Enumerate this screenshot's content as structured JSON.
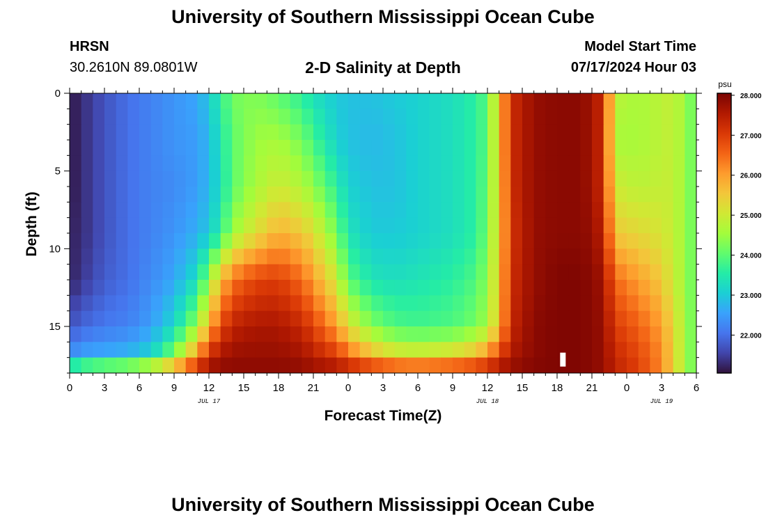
{
  "page": {
    "title": "University of Southern Mississippi Ocean Cube",
    "footer_title": "University of Southern Mississippi Ocean Cube",
    "station": "HRSN",
    "coordinates": "30.2610N  89.0801W",
    "subtitle": "2-D Salinity at Depth",
    "model_label": "Model Start Time",
    "model_time": "07/17/2024 Hour 03"
  },
  "chart_data": {
    "type": "heatmap",
    "title": "2-D Salinity at Depth",
    "xlabel": "Forecast Time(Z)",
    "ylabel": "Depth (ft)",
    "x_range_hours": [
      0,
      54
    ],
    "y_range_ft": [
      0,
      18
    ],
    "x_ticks": [
      {
        "hour": 0,
        "label": "0"
      },
      {
        "hour": 3,
        "label": "3"
      },
      {
        "hour": 6,
        "label": "6"
      },
      {
        "hour": 9,
        "label": "9"
      },
      {
        "hour": 12,
        "label": "12"
      },
      {
        "hour": 15,
        "label": "15"
      },
      {
        "hour": 18,
        "label": "18"
      },
      {
        "hour": 21,
        "label": "21"
      },
      {
        "hour": 24,
        "label": "0"
      },
      {
        "hour": 27,
        "label": "3"
      },
      {
        "hour": 30,
        "label": "6"
      },
      {
        "hour": 33,
        "label": "9"
      },
      {
        "hour": 36,
        "label": "12"
      },
      {
        "hour": 39,
        "label": "15"
      },
      {
        "hour": 42,
        "label": "18"
      },
      {
        "hour": 45,
        "label": "21"
      },
      {
        "hour": 48,
        "label": "0"
      },
      {
        "hour": 51,
        "label": "3"
      },
      {
        "hour": 54,
        "label": "6"
      }
    ],
    "date_labels": [
      {
        "hour": 12,
        "label": "JUL 17"
      },
      {
        "hour": 36,
        "label": "JUL 18"
      },
      {
        "hour": 51,
        "label": "JUL 19"
      }
    ],
    "y_ticks": [
      {
        "depth": 0,
        "label": "0"
      },
      {
        "depth": 5,
        "label": "5"
      },
      {
        "depth": 10,
        "label": "10"
      },
      {
        "depth": 15,
        "label": "15"
      }
    ],
    "colorbar": {
      "unit": "psu",
      "min": 21.05,
      "max": 28.05,
      "ticks": [
        {
          "value": 28,
          "label": "28.000"
        },
        {
          "value": 27,
          "label": "27.000"
        },
        {
          "value": 26,
          "label": "26.000"
        },
        {
          "value": 25,
          "label": "25.000"
        },
        {
          "value": 24,
          "label": "24.000"
        },
        {
          "value": 23,
          "label": "23.000"
        },
        {
          "value": 22,
          "label": "22.000"
        }
      ],
      "colors": [
        "#30123b",
        "#4145ab",
        "#4675ed",
        "#39a2fc",
        "#1bcfd4",
        "#24eca6",
        "#61fc6c",
        "#a4fc3b",
        "#d1e834",
        "#f3c63a",
        "#fe9b2d",
        "#f36315",
        "#d93806",
        "#b11901",
        "#7a0402"
      ]
    },
    "depth_rows_ft": [
      0,
      3,
      6,
      9,
      12,
      15,
      17,
      18
    ],
    "time_hours": [
      0,
      1,
      3,
      5,
      7,
      9,
      11,
      12,
      13,
      14,
      16,
      18,
      20,
      21,
      23,
      24,
      26,
      28,
      30,
      33,
      35,
      36,
      37,
      38,
      40,
      42,
      43,
      44,
      45,
      46,
      47,
      49,
      51,
      52,
      53,
      54
    ],
    "salinity_psu": [
      [
        21.1,
        21.3,
        21.7,
        22.0,
        22.2,
        22.4,
        22.6,
        23.0,
        23.6,
        24.2,
        24.3,
        24.0,
        23.6,
        23.3,
        23.0,
        22.9,
        22.9,
        23.0,
        23.1,
        23.3,
        23.6,
        24.0,
        25.5,
        27.2,
        27.8,
        27.9,
        27.9,
        27.9,
        27.7,
        27.2,
        24.8,
        24.6,
        24.8,
        24.9,
        24.5,
        24.0
      ],
      [
        21.1,
        21.3,
        21.7,
        22.0,
        22.2,
        22.4,
        22.5,
        22.8,
        23.4,
        24.0,
        24.5,
        24.6,
        24.2,
        23.8,
        23.1,
        22.9,
        22.8,
        22.9,
        23.1,
        23.3,
        23.6,
        24.0,
        25.5,
        27.2,
        27.8,
        27.9,
        27.9,
        27.9,
        27.7,
        27.2,
        24.6,
        24.6,
        24.8,
        24.9,
        24.5,
        24.0
      ],
      [
        21.1,
        21.3,
        21.7,
        22.0,
        22.2,
        22.3,
        22.5,
        22.8,
        23.3,
        24.0,
        24.6,
        25.0,
        24.7,
        24.4,
        23.6,
        23.1,
        22.9,
        22.9,
        23.1,
        23.3,
        23.6,
        24.1,
        25.4,
        27.2,
        27.8,
        27.9,
        27.9,
        27.9,
        27.7,
        27.2,
        25.0,
        24.8,
        24.9,
        24.9,
        24.5,
        24.0
      ],
      [
        21.2,
        21.3,
        21.7,
        22.0,
        22.2,
        22.4,
        22.7,
        23.0,
        23.6,
        24.5,
        25.2,
        25.8,
        25.5,
        25.2,
        24.2,
        23.4,
        23.0,
        23.0,
        23.1,
        23.3,
        23.6,
        24.2,
        25.4,
        27.1,
        27.8,
        27.9,
        27.9,
        27.9,
        27.8,
        27.4,
        25.5,
        25.3,
        25.1,
        24.9,
        24.5,
        24.0
      ],
      [
        21.2,
        21.4,
        21.8,
        22.0,
        22.3,
        22.6,
        23.3,
        24.5,
        25.6,
        26.4,
        26.9,
        27.0,
        26.5,
        26.0,
        25.0,
        24.0,
        23.4,
        23.3,
        23.4,
        23.6,
        23.9,
        24.4,
        25.5,
        27.2,
        27.8,
        28.0,
        28.0,
        28.0,
        27.9,
        27.7,
        26.5,
        26.0,
        25.5,
        25.0,
        24.5,
        24.0
      ],
      [
        21.7,
        21.9,
        22.1,
        22.2,
        22.5,
        23.2,
        24.5,
        25.8,
        26.8,
        27.4,
        27.6,
        27.6,
        27.3,
        26.9,
        26.0,
        25.2,
        24.3,
        23.9,
        23.8,
        23.9,
        24.2,
        24.6,
        25.6,
        27.3,
        27.9,
        28.0,
        28.0,
        28.0,
        27.9,
        27.8,
        27.0,
        26.6,
        26.0,
        25.3,
        24.6,
        24.0
      ],
      [
        22.4,
        22.6,
        22.7,
        22.8,
        23.2,
        24.4,
        26.2,
        27.3,
        27.7,
        27.8,
        27.8,
        27.8,
        27.7,
        27.5,
        27.1,
        26.6,
        25.8,
        25.3,
        25.2,
        25.4,
        25.8,
        26.3,
        27.0,
        27.6,
        27.9,
        28.0,
        28.0,
        28.0,
        27.9,
        27.8,
        27.3,
        26.9,
        26.2,
        25.4,
        24.6,
        24.0
      ],
      [
        24.4,
        24.8,
        25.2,
        25.4,
        25.9,
        26.6,
        27.6,
        27.9,
        27.9,
        27.9,
        27.9,
        27.9,
        27.9,
        27.8,
        27.8,
        27.7,
        27.6,
        27.5,
        27.4,
        27.5,
        27.6,
        27.7,
        27.8,
        27.9,
        28.0,
        28.0,
        28.0,
        28.0,
        27.9,
        27.8,
        27.4,
        27.0,
        26.2,
        25.4,
        24.6,
        24.0
      ]
    ],
    "marker_hour": 42.5,
    "marker_depth_ft": 17
  }
}
